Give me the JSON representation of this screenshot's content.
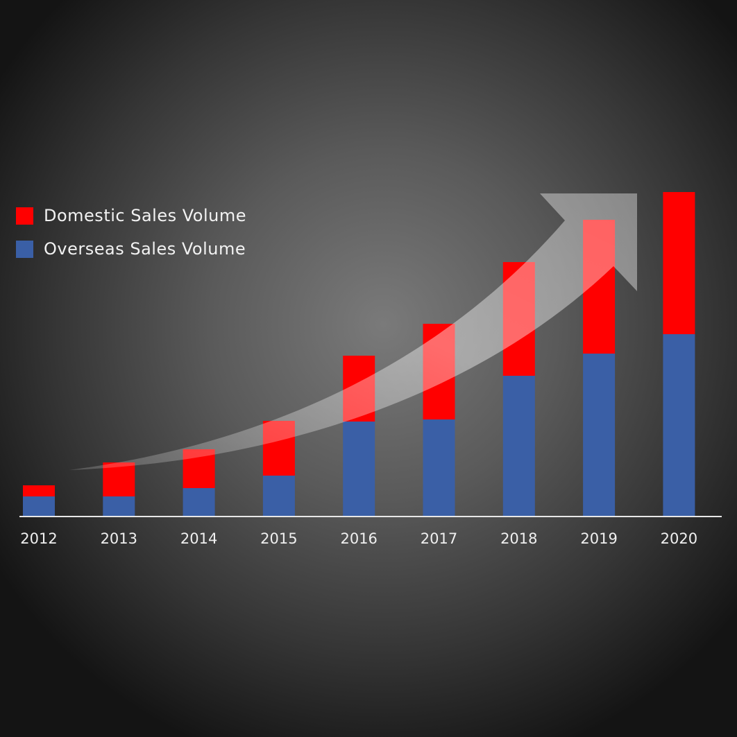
{
  "chart_data": {
    "type": "bar",
    "stacked": true,
    "title": "",
    "xlabel": "",
    "ylabel": "",
    "categories": [
      "2012",
      "2013",
      "2014",
      "2015",
      "2016",
      "2017",
      "2018",
      "2019",
      "2020"
    ],
    "series": [
      {
        "name": "Overseas Sales Volume",
        "color": "#3a5fa6",
        "values": [
          28,
          28,
          40,
          58,
          136,
          139,
          202,
          234,
          262
        ]
      },
      {
        "name": "Domestic Sales Volume",
        "color": "#ff0000",
        "values": [
          16,
          49,
          56,
          79,
          95,
          138,
          164,
          193,
          205
        ]
      }
    ],
    "ylim": [
      0,
      470
    ],
    "grid": false,
    "legend_position": "top-left",
    "decoration": "curved upward arrow"
  },
  "legend": {
    "items": [
      {
        "label": "Domestic Sales Volume",
        "color": "#ff0000"
      },
      {
        "label": "Overseas Sales Volume",
        "color": "#3a5fa6"
      }
    ]
  }
}
